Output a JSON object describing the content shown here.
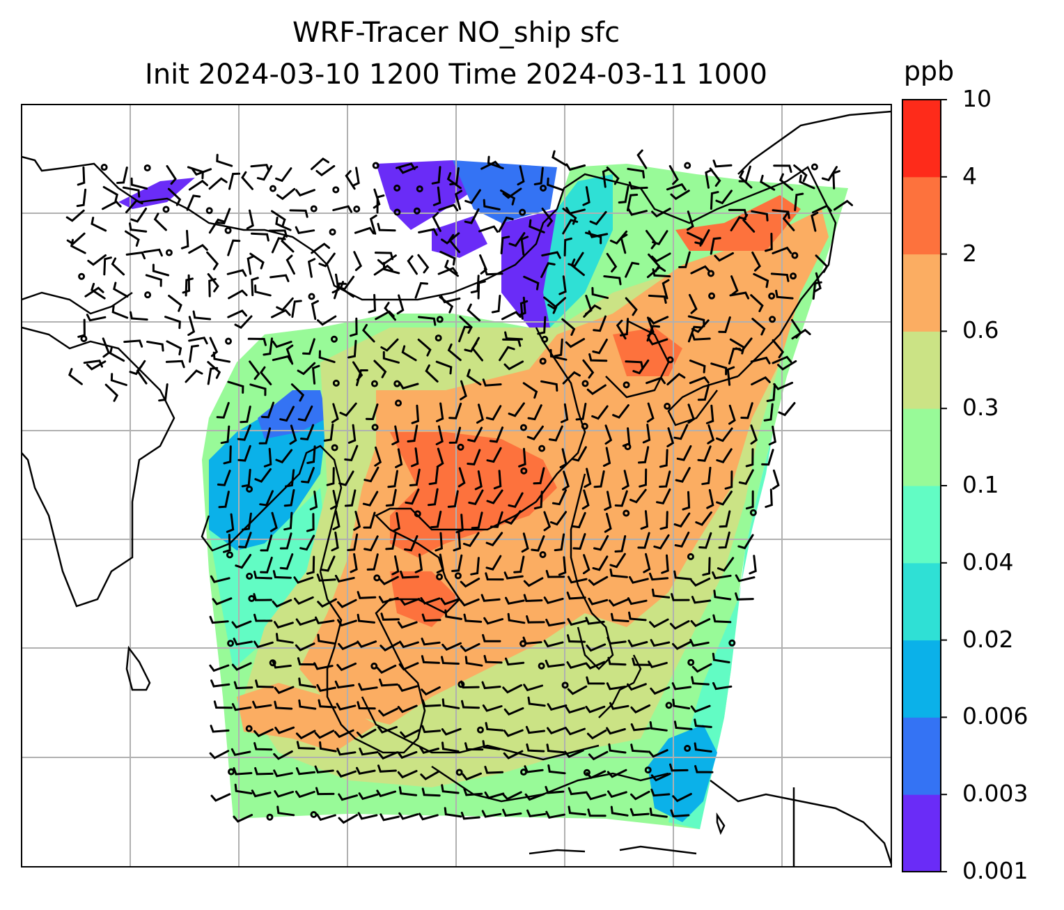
{
  "title": {
    "line1": "WRF-Tracer NO_ship sfc",
    "line2": "Init 2024-03-10 1200 Time 2024-03-11 1000"
  },
  "colorbar": {
    "unit": "ppb",
    "levels": [
      "0.001",
      "0.003",
      "0.006",
      "0.02",
      "0.04",
      "0.1",
      "0.3",
      "0.6",
      "2",
      "4",
      "10"
    ],
    "colors": [
      "#6a2cf7",
      "#3473f4",
      "#0bb1e9",
      "#2fe0d5",
      "#62fcc4",
      "#98fa98",
      "#cbe385",
      "#fbad62",
      "#fd723d",
      "#fe2b1a"
    ]
  },
  "map": {
    "field": "NO_ship surface concentration",
    "overlay": "wind barbs",
    "grid": true,
    "coastlines": true
  }
}
